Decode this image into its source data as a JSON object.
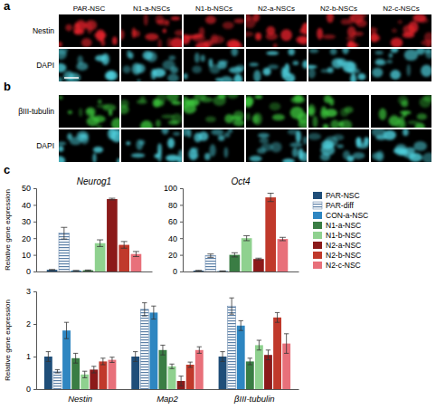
{
  "image_panels": [
    {
      "letter": "a",
      "columns": [
        "PAR-NSC",
        "N1-a-NSCs",
        "N1-b-NSCs",
        "N2-a-NSCs",
        "N2-b-NSCs",
        "N2-c-NSCs"
      ],
      "rows": [
        {
          "label": "Nestin",
          "color": "#e8232b"
        },
        {
          "label": "DAPI",
          "color": "#4fd3e0"
        }
      ]
    },
    {
      "letter": "b",
      "rows": [
        {
          "label": "βIII-tubulin",
          "color": "#3cc43c"
        },
        {
          "label": "DAPI",
          "color": "#4fd3e0"
        }
      ]
    }
  ],
  "chart_letter": "c",
  "chart_data": [
    {
      "type": "bar",
      "title": "Neurog1",
      "y_label": "Relative gene expression",
      "ylim": [
        0,
        50
      ],
      "yticks": [
        0,
        10,
        20,
        30,
        40,
        50
      ],
      "tick_labels": "y",
      "legend": "right",
      "series": [
        {
          "name": "PAR-NSC",
          "color": "#1f4e79",
          "values": [
            1
          ],
          "errors": [
            0.2
          ]
        },
        {
          "name": "PAR-diff",
          "color": "#5b7fa6",
          "line_style": "striped",
          "values": [
            23
          ],
          "errors": [
            3.5
          ]
        },
        {
          "name": "CON-a-NSC",
          "color": "#2e86c1",
          "values": [
            0.5
          ],
          "errors": [
            0.1
          ]
        },
        {
          "name": "N1-a-NSC",
          "color": "#3a7d44",
          "values": [
            0.7
          ],
          "errors": [
            0.2
          ]
        },
        {
          "name": "N1-b-NSC",
          "color": "#8fd18f",
          "values": [
            17
          ],
          "errors": [
            2
          ]
        },
        {
          "name": "N2-a-NSC",
          "color": "#8b1a1a",
          "values": [
            43.5
          ],
          "errors": [
            0.5
          ]
        },
        {
          "name": "N2-b-NSC",
          "color": "#c0392b",
          "values": [
            16
          ],
          "errors": [
            2
          ]
        },
        {
          "name": "N2-c-NSC",
          "color": "#e8707a",
          "values": [
            10.5
          ],
          "errors": [
            1.5
          ]
        }
      ]
    },
    {
      "type": "bar",
      "title": "Oct4",
      "ylim": [
        0,
        100
      ],
      "yticks": [
        0,
        20,
        40,
        60,
        80,
        100
      ],
      "tick_labels": "y",
      "series": [
        {
          "name": "PAR-NSC",
          "color": "#1f4e79",
          "values": [
            1
          ],
          "errors": [
            0.3
          ]
        },
        {
          "name": "PAR-diff",
          "color": "#5b7fa6",
          "line_style": "striped",
          "values": [
            19
          ],
          "errors": [
            2
          ]
        },
        {
          "name": "CON-a-NSC",
          "color": "#2e86c1",
          "values": [
            0.5
          ],
          "errors": [
            0.2
          ]
        },
        {
          "name": "N1-a-NSC",
          "color": "#3a7d44",
          "values": [
            20
          ],
          "errors": [
            2.5
          ]
        },
        {
          "name": "N1-b-NSC",
          "color": "#8fd18f",
          "values": [
            40
          ],
          "errors": [
            3
          ]
        },
        {
          "name": "N2-a-NSC",
          "color": "#8b1a1a",
          "values": [
            15
          ],
          "errors": [
            1
          ]
        },
        {
          "name": "N2-b-NSC",
          "color": "#c0392b",
          "values": [
            89
          ],
          "errors": [
            5
          ]
        },
        {
          "name": "N2-c-NSC",
          "color": "#e8707a",
          "values": [
            39
          ],
          "errors": [
            2
          ]
        }
      ]
    },
    {
      "type": "bar",
      "y_label": "Relative gene expression",
      "categories": [
        "Nestin",
        "Map2",
        "βIII-tubulin"
      ],
      "ylim": [
        0,
        3
      ],
      "yticks": [
        0,
        1,
        2,
        3
      ],
      "series": [
        {
          "name": "PAR-NSC",
          "color": "#1f4e79",
          "values": [
            1.0,
            1.0,
            1.0
          ],
          "errors": [
            0.15,
            0.15,
            0.15
          ]
        },
        {
          "name": "PAR-diff",
          "color": "#5b7fa6",
          "line_style": "striped",
          "values": [
            0.55,
            2.45,
            2.55
          ],
          "errors": [
            0.05,
            0.2,
            0.25
          ]
        },
        {
          "name": "CON-a-NSC",
          "color": "#2e86c1",
          "values": [
            1.8,
            2.35,
            1.95
          ],
          "errors": [
            0.25,
            0.2,
            0.15
          ]
        },
        {
          "name": "N1-a-NSC",
          "color": "#3a7d44",
          "values": [
            0.95,
            1.2,
            0.85
          ],
          "errors": [
            0.15,
            0.15,
            0.1
          ]
        },
        {
          "name": "N1-b-NSC",
          "color": "#8fd18f",
          "values": [
            0.45,
            0.7,
            1.35
          ],
          "errors": [
            0.1,
            0.07,
            0.15
          ]
        },
        {
          "name": "N2-a-NSC",
          "color": "#8b1a1a",
          "values": [
            0.6,
            0.25,
            1.05
          ],
          "errors": [
            0.1,
            0.15,
            0.15
          ]
        },
        {
          "name": "N2-b-NSC",
          "color": "#c0392b",
          "values": [
            0.85,
            0.75,
            2.2
          ],
          "errors": [
            0.1,
            0.08,
            0.15
          ]
        },
        {
          "name": "N2-c-NSC",
          "color": "#e8707a",
          "values": [
            0.9,
            1.2,
            1.4
          ],
          "errors": [
            0.08,
            0.1,
            0.3
          ]
        }
      ]
    }
  ]
}
